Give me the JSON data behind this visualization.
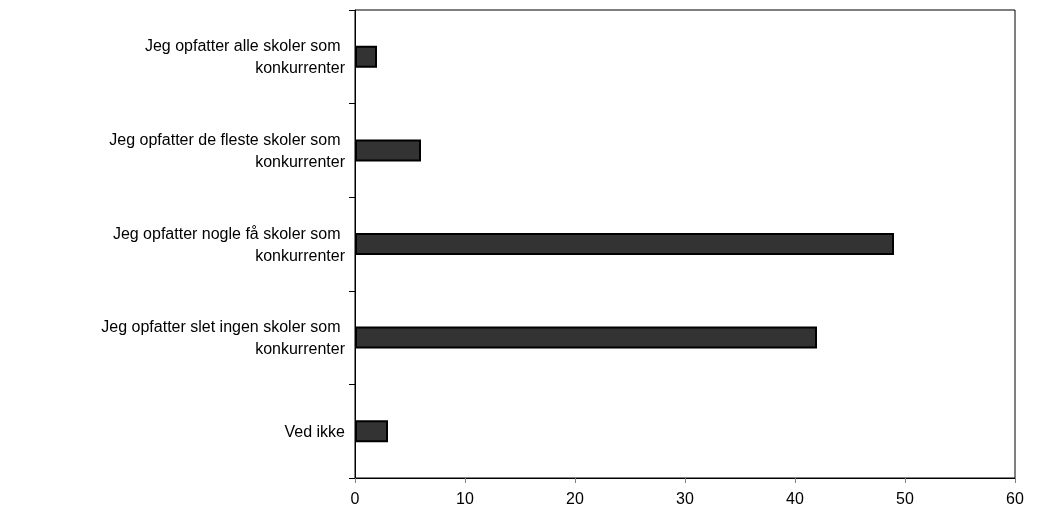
{
  "chart_data": {
    "type": "bar",
    "orientation": "horizontal",
    "categories": [
      "Jeg opfatter alle skoler som konkurrenter",
      "Jeg opfatter de fleste skoler som konkurrenter",
      "Jeg opfatter nogle få skoler som konkurrenter",
      "Jeg opfatter slet ingen skoler som konkurrenter",
      "Ved ikke"
    ],
    "values": [
      2,
      6,
      49,
      42,
      3
    ],
    "color": "#333333",
    "xlim": [
      0,
      60
    ],
    "xticks": [
      0,
      10,
      20,
      30,
      40,
      50,
      60
    ],
    "grid": false
  }
}
